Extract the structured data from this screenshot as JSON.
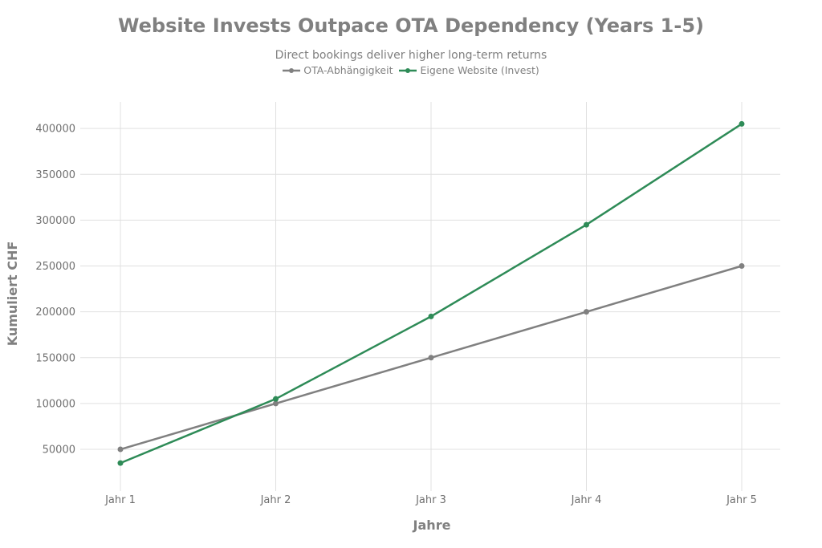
{
  "chart_data": {
    "type": "line",
    "title": "Website Invests Outpace OTA Dependency (Years 1-5)",
    "subtitle": "Direct bookings deliver higher long-term returns",
    "xlabel": "Jahre",
    "ylabel": "Kumuliert CHF",
    "categories": [
      "Jahr 1",
      "Jahr 2",
      "Jahr 3",
      "Jahr 4",
      "Jahr 5"
    ],
    "yticks": [
      50000,
      100000,
      150000,
      200000,
      250000,
      300000,
      350000,
      400000
    ],
    "ylim": [
      4500,
      429000
    ],
    "grid": true,
    "legend_position": "top-center",
    "series": [
      {
        "name": "OTA-Abhängigkeit",
        "color": "#808080",
        "values": [
          50000,
          100000,
          150000,
          200000,
          250000
        ]
      },
      {
        "name": "Eigene Website (Invest)",
        "color": "#2e8b57",
        "values": [
          35000,
          105000,
          195000,
          295000,
          405000
        ]
      }
    ]
  }
}
